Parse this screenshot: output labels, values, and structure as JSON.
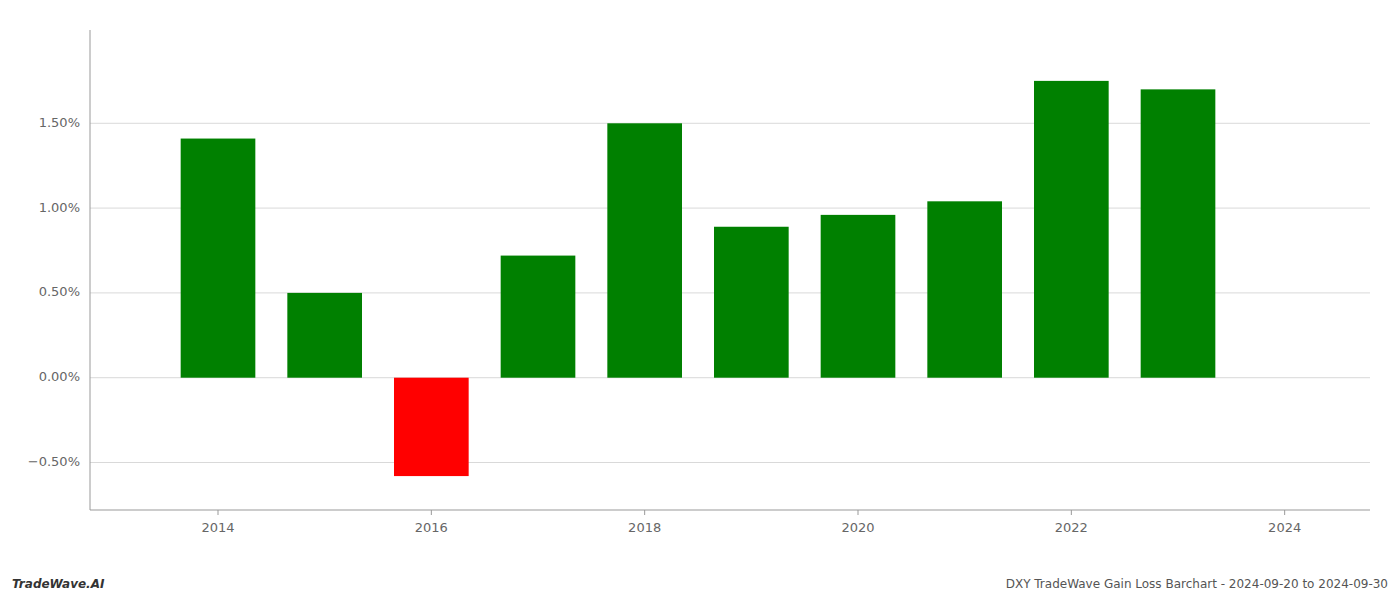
{
  "chart_data": {
    "type": "bar",
    "x": [
      2014,
      2015,
      2016,
      2017,
      2018,
      2019,
      2020,
      2021,
      2022,
      2023
    ],
    "values": [
      1.41,
      0.5,
      -0.58,
      0.72,
      1.5,
      0.89,
      0.96,
      1.04,
      1.75,
      1.7
    ],
    "colors": [
      "#008000",
      "#008000",
      "#ff0000",
      "#008000",
      "#008000",
      "#008000",
      "#008000",
      "#008000",
      "#008000",
      "#008000"
    ],
    "xlim": [
      2012.8,
      2024.8
    ],
    "xticks": [
      2014,
      2016,
      2018,
      2020,
      2022,
      2024
    ],
    "ylim": [
      -0.78,
      2.05
    ],
    "yticks": [
      {
        "value": -0.5,
        "label": "−0.50%"
      },
      {
        "value": 0.0,
        "label": "0.00%"
      },
      {
        "value": 0.5,
        "label": "0.50%"
      },
      {
        "value": 1.0,
        "label": "1.00%"
      },
      {
        "value": 1.5,
        "label": "1.50%"
      }
    ],
    "grid": true,
    "annotations": [
      "TradeWave.AI",
      "DXY TradeWave Gain Loss Barchart - 2024-09-20 to 2024-09-30"
    ]
  }
}
